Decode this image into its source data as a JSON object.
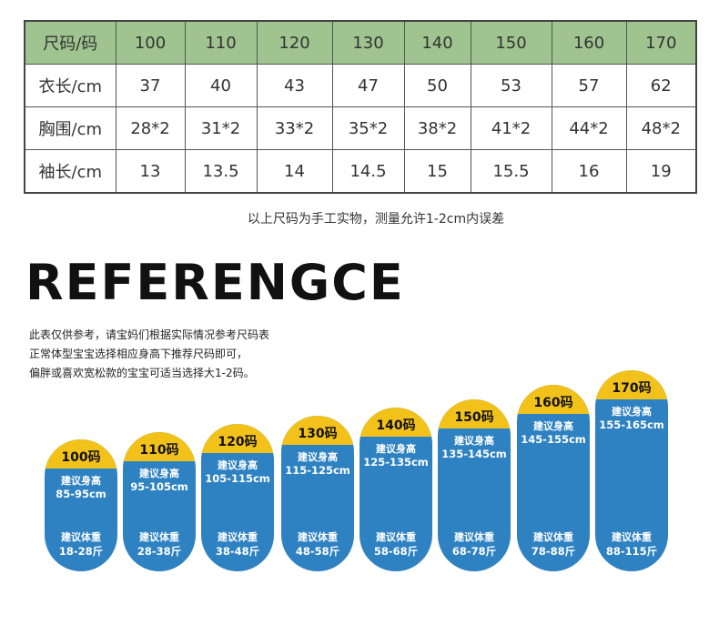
{
  "table": {
    "header": [
      "尺码/码",
      "100",
      "110",
      "120",
      "130",
      "140",
      "150",
      "160",
      "170"
    ],
    "rows": [
      [
        "衣长/cm",
        "37",
        "40",
        "43",
        "47",
        "50",
        "53",
        "57",
        "62"
      ],
      [
        "胸围/cm",
        "28*2",
        "31*2",
        "33*2",
        "35*2",
        "38*2",
        "41*2",
        "44*2",
        "48*2"
      ],
      [
        "袖长/cm",
        "13",
        "13.5",
        "14",
        "14.5",
        "15",
        "15.5",
        "16",
        "19"
      ]
    ],
    "header_color": "#9fc48f"
  },
  "note": "以上尺码为手工实物，测量允许1-2cm内误差",
  "reference": {
    "heading": "REFERENGCE",
    "lines": [
      "此表仅供参考，请宝妈们根据实际情况参考尺码表",
      "正常体型宝宝选择相应身高下推荐尺码即可，",
      "偏胖或喜欢宽松款的宝宝可适当选择大1-2码。"
    ]
  },
  "size_guide": {
    "cap_color": "#f2c21a",
    "body_color": "#2f82c2",
    "height_label": "建议身高",
    "weight_label": "建议体重",
    "sizes": [
      {
        "size": "100码",
        "height": "85-95cm",
        "weight": "18-28斤"
      },
      {
        "size": "110码",
        "height": "95-105cm",
        "weight": "28-38斤"
      },
      {
        "size": "120码",
        "height": "105-115cm",
        "weight": "38-48斤"
      },
      {
        "size": "130码",
        "height": "115-125cm",
        "weight": "48-58斤"
      },
      {
        "size": "140码",
        "height": "125-135cm",
        "weight": "58-68斤"
      },
      {
        "size": "150码",
        "height": "135-145cm",
        "weight": "68-78斤"
      },
      {
        "size": "160码",
        "height": "145-155cm",
        "weight": "78-88斤"
      },
      {
        "size": "170码",
        "height": "155-165cm",
        "weight": "88-115斤"
      }
    ]
  }
}
